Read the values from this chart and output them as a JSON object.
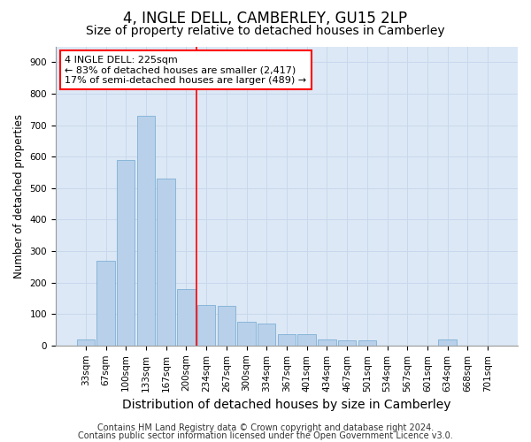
{
  "title": "4, INGLE DELL, CAMBERLEY, GU15 2LP",
  "subtitle": "Size of property relative to detached houses in Camberley",
  "xlabel": "Distribution of detached houses by size in Camberley",
  "ylabel": "Number of detached properties",
  "categories": [
    "33sqm",
    "67sqm",
    "100sqm",
    "133sqm",
    "167sqm",
    "200sqm",
    "234sqm",
    "267sqm",
    "300sqm",
    "334sqm",
    "367sqm",
    "401sqm",
    "434sqm",
    "467sqm",
    "501sqm",
    "534sqm",
    "567sqm",
    "601sqm",
    "634sqm",
    "668sqm",
    "701sqm"
  ],
  "values": [
    20,
    270,
    590,
    730,
    530,
    180,
    130,
    125,
    75,
    70,
    35,
    35,
    20,
    15,
    15,
    0,
    0,
    0,
    20,
    0,
    0
  ],
  "bar_color": "#b8d0ea",
  "bar_edge_color": "#6fa8d0",
  "vline_color": "red",
  "vline_pos": 5.5,
  "annotation_text": "4 INGLE DELL: 225sqm\n← 83% of detached houses are smaller (2,417)\n17% of semi-detached houses are larger (489) →",
  "annotation_box_color": "white",
  "annotation_box_edge_color": "red",
  "ylim": [
    0,
    950
  ],
  "yticks": [
    0,
    100,
    200,
    300,
    400,
    500,
    600,
    700,
    800,
    900
  ],
  "grid_color": "#c8d8ec",
  "background_color": "#dce8f5",
  "footer1": "Contains HM Land Registry data © Crown copyright and database right 2024.",
  "footer2": "Contains public sector information licensed under the Open Government Licence v3.0.",
  "title_fontsize": 12,
  "subtitle_fontsize": 10,
  "xlabel_fontsize": 10,
  "ylabel_fontsize": 8.5,
  "tick_fontsize": 7.5,
  "annotation_fontsize": 8,
  "footer_fontsize": 7
}
